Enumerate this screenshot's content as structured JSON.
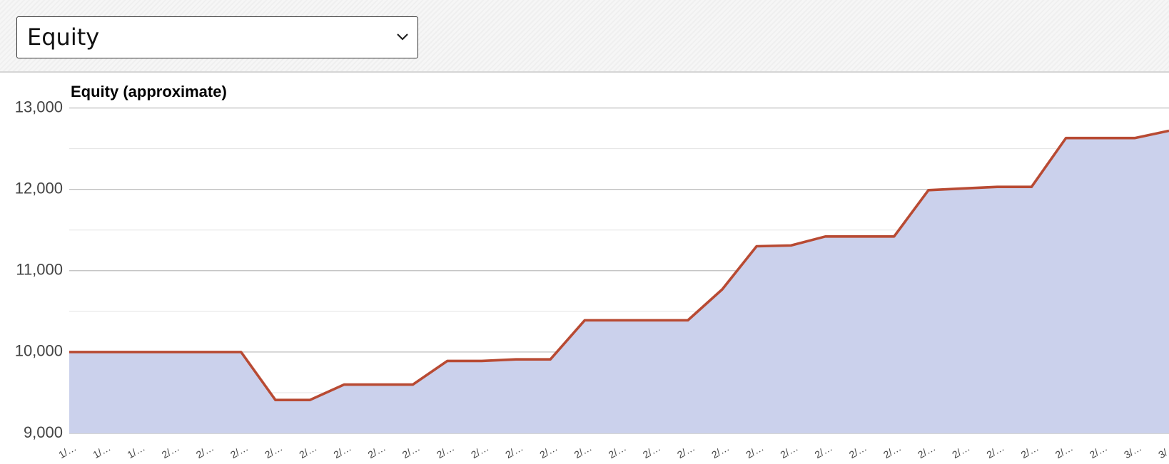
{
  "dropdown": {
    "selected": "Equity"
  },
  "chart_data": {
    "type": "area",
    "title": "Equity (approximate)",
    "categories": [
      "1/…",
      "1/…",
      "1/…",
      "2/…",
      "2/…",
      "2/…",
      "2/…",
      "2/…",
      "2/…",
      "2/…",
      "2/…",
      "2/…",
      "2/…",
      "2/…",
      "2/…",
      "2/…",
      "2/…",
      "2/…",
      "2/…",
      "2/…",
      "2/…",
      "2/…",
      "2/…",
      "2/…",
      "2/…",
      "2/…",
      "2/…",
      "2/…",
      "2/…",
      "2/…",
      "2/…",
      "3/…",
      "3/…"
    ],
    "series": [
      {
        "name": "Equity",
        "color": "#b84a33",
        "fill": "#cbd1ec",
        "values": [
          10000,
          10000,
          10000,
          10000,
          10000,
          10000,
          9410,
          9410,
          9600,
          9600,
          9600,
          9890,
          9890,
          9910,
          9910,
          10390,
          10390,
          10390,
          10390,
          10770,
          11300,
          11310,
          11420,
          11420,
          11420,
          11990,
          12010,
          12030,
          12030,
          12630,
          12630,
          12630,
          12720
        ]
      }
    ],
    "ylim": [
      9000,
      13000
    ],
    "yticks": [
      {
        "value": 9000,
        "label": "9,000"
      },
      {
        "value": 10000,
        "label": "10,000"
      },
      {
        "value": 11000,
        "label": "11,000"
      },
      {
        "value": 12000,
        "label": "12,000"
      },
      {
        "value": 13000,
        "label": "13,000"
      }
    ],
    "minor_yticks": [
      9500,
      10500,
      11500,
      12500
    ],
    "grid": true
  }
}
